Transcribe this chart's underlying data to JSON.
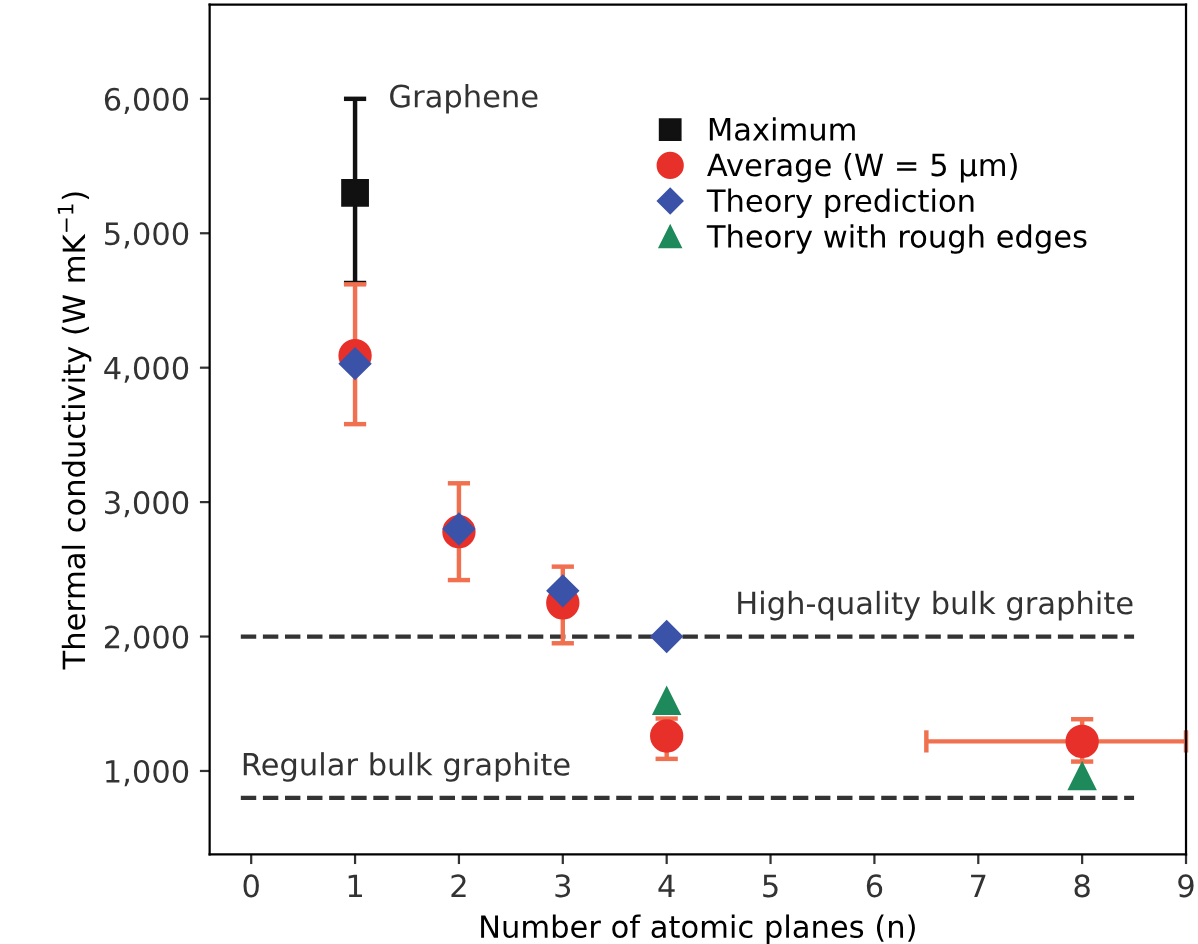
{
  "chart_data": {
    "type": "scatter",
    "xlabel": "Number of atomic planes (n)",
    "ylabel": "Thermal conductivity (W mK$^{−1}$)",
    "xlim": [
      -0.4,
      9
    ],
    "ylim": [
      380,
      6700
    ],
    "xticks": [
      0,
      1,
      2,
      3,
      4,
      5,
      6,
      7,
      8,
      9
    ],
    "yticks": [
      {
        "value": 1000,
        "label": "1,000"
      },
      {
        "value": 2000,
        "label": "2,000"
      },
      {
        "value": 3000,
        "label": "3,000"
      },
      {
        "value": 4000,
        "label": "4,000"
      },
      {
        "value": 5000,
        "label": "5,000"
      },
      {
        "value": 6000,
        "label": "6,000"
      }
    ],
    "series": [
      {
        "name": "Maximum",
        "color": "#111111",
        "marker": "square",
        "x": [
          1
        ],
        "values": [
          5300
        ],
        "errors": [
          [
            4630,
            6000
          ]
        ]
      },
      {
        "name": "Average (W = 5 µm)",
        "color": "#e8302a",
        "marker": "circle",
        "x": [
          1,
          2,
          3,
          4,
          8
        ],
        "values": [
          4090,
          2780,
          2250,
          1260,
          1220
        ],
        "errors": [
          [
            3580,
            4620
          ],
          [
            2420,
            3140
          ],
          [
            1950,
            2520
          ],
          [
            1090,
            1390
          ],
          [
            1070,
            1385
          ]
        ],
        "xerrors": [
          null,
          null,
          null,
          null,
          [
            6.5,
            9
          ]
        ]
      },
      {
        "name": "Theory prediction",
        "color": "#3a52a8",
        "marker": "diamond",
        "x": [
          1,
          2,
          3,
          4
        ],
        "values": [
          4030,
          2800,
          2340,
          2000
        ]
      },
      {
        "name": "Theory with rough edges",
        "color": "#1e8a5c",
        "marker": "triangle",
        "x": [
          4,
          8
        ],
        "values": [
          1520,
          960
        ]
      }
    ],
    "ref_lines": [
      {
        "axis": "y",
        "value": 2000,
        "label": "High-quality bulk graphite",
        "color": "#333333",
        "line_style": "dashed"
      },
      {
        "axis": "y",
        "value": 800,
        "label": "Regular bulk graphite",
        "color": "#333333",
        "line_style": "dashed"
      }
    ],
    "annotations": [
      {
        "text": "Graphene",
        "x": 1,
        "y": 6000
      }
    ],
    "legend": "top",
    "grid": false
  }
}
